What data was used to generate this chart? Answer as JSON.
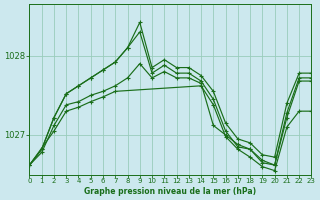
{
  "title": "Graphe pression niveau de la mer (hPa)",
  "bg_color": "#cce8ee",
  "grid_color": "#99ccbb",
  "line_color": "#1a6e1a",
  "xlim": [
    0,
    23
  ],
  "ylim": [
    1026.5,
    1028.65
  ],
  "yticks": [
    1027,
    1028
  ],
  "xticks": [
    0,
    1,
    2,
    3,
    4,
    5,
    6,
    7,
    8,
    9,
    10,
    11,
    12,
    13,
    14,
    15,
    16,
    17,
    18,
    19,
    20,
    21,
    22,
    23
  ],
  "lines": [
    {
      "x": [
        0,
        1,
        2,
        3,
        4,
        5,
        6,
        7,
        8,
        9,
        10,
        11,
        12,
        13,
        14,
        15,
        16,
        17,
        18,
        19,
        20,
        21,
        22,
        23
      ],
      "y": [
        1026.62,
        1026.82,
        1027.22,
        1027.52,
        1027.62,
        1027.72,
        1027.82,
        1027.92,
        1028.1,
        1028.42,
        1027.85,
        1027.95,
        1027.85,
        1027.85,
        1027.75,
        1027.55,
        1027.15,
        1026.95,
        1026.9,
        1026.75,
        1026.72,
        1027.4,
        1027.78,
        1027.78
      ]
    },
    {
      "x": [
        0,
        1,
        2,
        3,
        4,
        5,
        6,
        7,
        8,
        9,
        10,
        11,
        12,
        13,
        14,
        15,
        16,
        17,
        18,
        19,
        20,
        21,
        22,
        23
      ],
      "y": [
        1026.62,
        1026.82,
        1027.22,
        1027.52,
        1027.62,
        1027.72,
        1027.82,
        1027.92,
        1028.1,
        1028.3,
        1027.78,
        1027.88,
        1027.78,
        1027.78,
        1027.68,
        1027.45,
        1027.05,
        1026.85,
        1026.82,
        1026.65,
        1026.62,
        1027.28,
        1027.72,
        1027.72
      ]
    },
    {
      "x": [
        0,
        1,
        2,
        3,
        4,
        5,
        6,
        7,
        8,
        9,
        10,
        11,
        12,
        13,
        14,
        15,
        16,
        17,
        18,
        19,
        20,
        21,
        22,
        23
      ],
      "y": [
        1026.62,
        1026.78,
        1027.12,
        1027.38,
        1027.42,
        1027.5,
        1027.55,
        1027.62,
        1027.72,
        1027.9,
        1027.72,
        1027.8,
        1027.72,
        1027.72,
        1027.65,
        1027.12,
        1027.0,
        1026.88,
        1026.82,
        1026.68,
        1026.62,
        1027.22,
        1027.68,
        1027.68
      ]
    },
    {
      "x": [
        0,
        2,
        3,
        4,
        5,
        6,
        7,
        14,
        15,
        16,
        17,
        18,
        19,
        20,
        21,
        22,
        23
      ],
      "y": [
        1026.62,
        1027.05,
        1027.3,
        1027.35,
        1027.42,
        1027.48,
        1027.55,
        1027.62,
        1027.38,
        1026.98,
        1026.82,
        1026.72,
        1026.6,
        1026.55,
        1027.1,
        1027.3,
        1027.3
      ]
    }
  ]
}
